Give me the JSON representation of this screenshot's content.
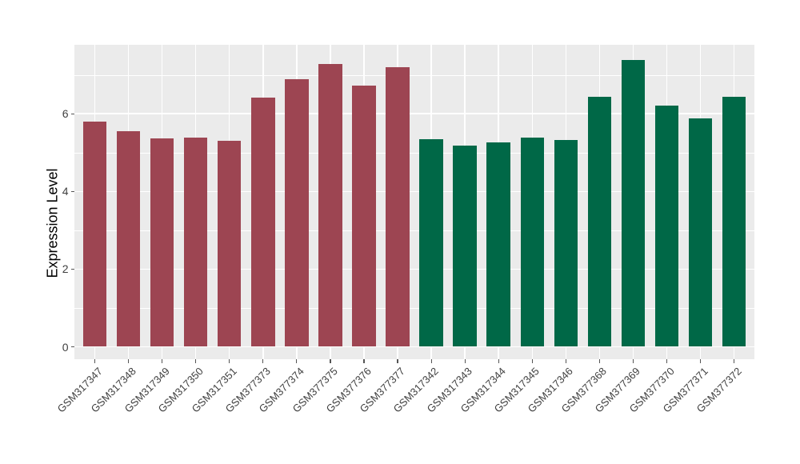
{
  "figure": {
    "y_axis_title": "Expression Level"
  },
  "chart_data": {
    "type": "bar",
    "title": "",
    "xlabel": "",
    "ylabel": "Expression Level",
    "ylim": [
      -0.4,
      7.75
    ],
    "yticks": [
      0,
      2,
      4,
      6
    ],
    "yticks_minor": [
      1,
      3,
      5,
      7
    ],
    "grid": "on",
    "legend": "none",
    "panel_background": "#EBEBEB",
    "gridline_color": "#FFFFFF",
    "group_colors": {
      "group1": "#9D4552",
      "group2": "#006847"
    },
    "categories": [
      "GSM317347",
      "GSM317348",
      "GSM317349",
      "GSM317350",
      "GSM317351",
      "GSM377373",
      "GSM377374",
      "GSM377375",
      "GSM377376",
      "GSM377377",
      "GSM317342",
      "GSM317343",
      "GSM317344",
      "GSM317345",
      "GSM317346",
      "GSM377368",
      "GSM377369",
      "GSM377370",
      "GSM377371",
      "GSM377372"
    ],
    "values": [
      5.8,
      5.55,
      5.37,
      5.39,
      5.3,
      6.41,
      6.89,
      7.29,
      6.73,
      7.2,
      5.35,
      5.17,
      5.27,
      5.39,
      5.33,
      6.44,
      7.39,
      6.22,
      5.88,
      6.43
    ],
    "colors": [
      "#9D4552",
      "#9D4552",
      "#9D4552",
      "#9D4552",
      "#9D4552",
      "#9D4552",
      "#9D4552",
      "#9D4552",
      "#9D4552",
      "#9D4552",
      "#006847",
      "#006847",
      "#006847",
      "#006847",
      "#006847",
      "#006847",
      "#006847",
      "#006847",
      "#006847",
      "#006847"
    ]
  }
}
